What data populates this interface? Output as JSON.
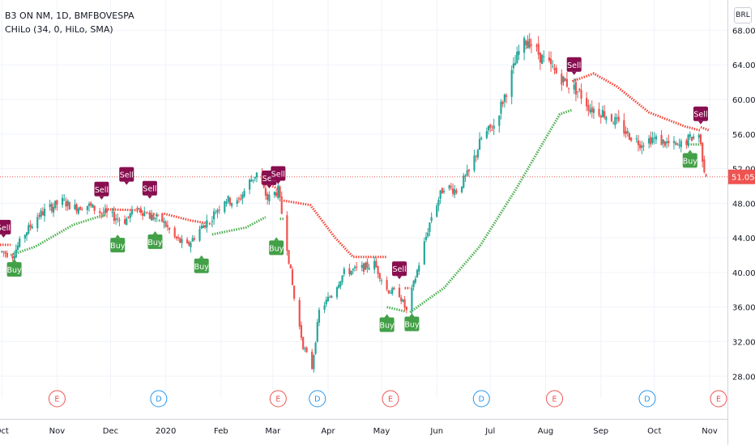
{
  "legend": {
    "symbol_line": "B3 ON NM, 1D, BMFBOVESPA",
    "indicator_line": "CHiLo (34, 0, HiLo, SMA)"
  },
  "currency_button": "BRL",
  "last_price_label": "51.05",
  "colors": {
    "up": "#26a69a",
    "down": "#ef5350",
    "hilo_buy": "#4caf50",
    "hilo_sell": "#f44336",
    "sell_badge": "#880e4f",
    "buy_badge": "#43a047",
    "earnings": "#ef5350",
    "dividend": "#2196f3",
    "grid": "#f0f3fa",
    "axis_text": "#131722",
    "last_price": "#ef5350"
  },
  "events": [
    {
      "letter": "E",
      "kind": "earnings",
      "date": "2019-11-01"
    },
    {
      "letter": "D",
      "kind": "dividend",
      "date": "2019-12-28"
    },
    {
      "letter": "E",
      "kind": "earnings",
      "date": "2020-03-04"
    },
    {
      "letter": "D",
      "kind": "dividend",
      "date": "2020-03-26"
    },
    {
      "letter": "E",
      "kind": "earnings",
      "date": "2020-05-06"
    },
    {
      "letter": "D",
      "kind": "dividend",
      "date": "2020-06-26"
    },
    {
      "letter": "E",
      "kind": "earnings",
      "date": "2020-08-06"
    },
    {
      "letter": "D",
      "kind": "dividend",
      "date": "2020-09-27"
    },
    {
      "letter": "E",
      "kind": "earnings",
      "date": "2020-11-06"
    }
  ],
  "chart_data": {
    "type": "candlestick",
    "title": "B3 ON NM, 1D, BMFBOVESPA",
    "indicator": "CHiLo (34, 0, HiLo, SMA)",
    "currency": "BRL",
    "last_price": 51.05,
    "x_tick_labels": [
      "Oct",
      "Nov",
      "Dec",
      "2020",
      "Feb",
      "Mar",
      "Apr",
      "May",
      "Jun",
      "Jul",
      "Aug",
      "Sep",
      "Oct",
      "Nov"
    ],
    "x_tick_dates": [
      "2019-10-01",
      "2019-11-01",
      "2019-12-01",
      "2020-01-01",
      "2020-02-01",
      "2020-03-01",
      "2020-04-01",
      "2020-05-01",
      "2020-06-01",
      "2020-07-01",
      "2020-08-01",
      "2020-09-01",
      "2020-10-01",
      "2020-11-01"
    ],
    "xlim": [
      "2019-09-30",
      "2020-11-11"
    ],
    "y_ticks": [
      28,
      32,
      36,
      40,
      44,
      48,
      52,
      56,
      60,
      64,
      68
    ],
    "y_tick_labels": [
      "28.00",
      "32.00",
      "36.00",
      "40.00",
      "44.00",
      "48.00",
      "52.00",
      "56.00",
      "60.00",
      "64.00",
      "68.00"
    ],
    "ylim": [
      25.5,
      71.5
    ],
    "grid": true,
    "price_path": [
      [
        "2019-10-01",
        42.4
      ],
      [
        "2019-10-07",
        42.0
      ],
      [
        "2019-10-14",
        44.5
      ],
      [
        "2019-10-21",
        46.5
      ],
      [
        "2019-10-28",
        47.5
      ],
      [
        "2019-11-04",
        48.2
      ],
      [
        "2019-11-11",
        47.5
      ],
      [
        "2019-11-18",
        47.8
      ],
      [
        "2019-11-25",
        47.0
      ],
      [
        "2019-12-02",
        46.5
      ],
      [
        "2019-12-09",
        46.0
      ],
      [
        "2019-12-16",
        47.5
      ],
      [
        "2019-12-23",
        46.5
      ],
      [
        "2019-12-30",
        46.0
      ],
      [
        "2020-01-06",
        44.0
      ],
      [
        "2020-01-13",
        43.0
      ],
      [
        "2020-01-20",
        45.0
      ],
      [
        "2020-01-27",
        46.5
      ],
      [
        "2020-02-03",
        48.5
      ],
      [
        "2020-02-10",
        48.0
      ],
      [
        "2020-02-17",
        50.5
      ],
      [
        "2020-02-21",
        51.5
      ],
      [
        "2020-02-27",
        48.5
      ],
      [
        "2020-03-04",
        49.5
      ],
      [
        "2020-03-09",
        43.0
      ],
      [
        "2020-03-13",
        37.0
      ],
      [
        "2020-03-18",
        31.5
      ],
      [
        "2020-03-23",
        29.0
      ],
      [
        "2020-03-27",
        35.5
      ],
      [
        "2020-04-03",
        37.5
      ],
      [
        "2020-04-10",
        40.0
      ],
      [
        "2020-04-20",
        40.5
      ],
      [
        "2020-04-27",
        41.0
      ],
      [
        "2020-05-04",
        38.0
      ],
      [
        "2020-05-11",
        37.5
      ],
      [
        "2020-05-15",
        35.5
      ],
      [
        "2020-05-22",
        41.0
      ],
      [
        "2020-05-29",
        46.5
      ],
      [
        "2020-06-05",
        50.0
      ],
      [
        "2020-06-12",
        49.5
      ],
      [
        "2020-06-19",
        51.5
      ],
      [
        "2020-06-26",
        55.5
      ],
      [
        "2020-07-03",
        57.0
      ],
      [
        "2020-07-10",
        61.0
      ],
      [
        "2020-07-17",
        65.5
      ],
      [
        "2020-07-22",
        67.0
      ],
      [
        "2020-07-29",
        65.0
      ],
      [
        "2020-08-05",
        63.5
      ],
      [
        "2020-08-12",
        62.0
      ],
      [
        "2020-08-19",
        61.0
      ],
      [
        "2020-08-26",
        59.0
      ],
      [
        "2020-09-02",
        58.5
      ],
      [
        "2020-09-09",
        57.5
      ],
      [
        "2020-09-16",
        56.0
      ],
      [
        "2020-09-23",
        55.0
      ],
      [
        "2020-09-30",
        55.5
      ],
      [
        "2020-10-07",
        55.0
      ],
      [
        "2020-10-14",
        54.5
      ],
      [
        "2020-10-21",
        55.5
      ],
      [
        "2020-10-26",
        56.0
      ],
      [
        "2020-10-29",
        52.0
      ],
      [
        "2020-10-31",
        51.05
      ]
    ],
    "hilo_segments": [
      {
        "side": "sell",
        "points": [
          [
            "2019-09-30",
            43.2
          ],
          [
            "2019-10-06",
            43.2
          ]
        ]
      },
      {
        "side": "buy",
        "points": [
          [
            "2019-10-06",
            42.0
          ],
          [
            "2019-10-20",
            43.0
          ],
          [
            "2019-11-10",
            45.5
          ],
          [
            "2019-11-25",
            46.5
          ],
          [
            "2019-11-28",
            46.6
          ]
        ]
      },
      {
        "side": "sell",
        "points": [
          [
            "2019-11-28",
            47.3
          ],
          [
            "2019-12-15",
            47.2
          ],
          [
            "2019-12-28",
            46.6
          ]
        ]
      },
      {
        "side": "buy",
        "points": [
          [
            "2019-12-28",
            46.0
          ],
          [
            "2019-12-31",
            46.0
          ]
        ]
      },
      {
        "side": "sell",
        "points": [
          [
            "2019-12-31",
            46.8
          ],
          [
            "2020-01-15",
            46.0
          ],
          [
            "2020-01-27",
            45.6
          ]
        ]
      },
      {
        "side": "buy",
        "points": [
          [
            "2020-01-27",
            44.4
          ],
          [
            "2020-02-15",
            45.2
          ],
          [
            "2020-02-26",
            46.4
          ]
        ]
      },
      {
        "side": "sell",
        "points": [
          [
            "2020-02-26",
            50.3
          ],
          [
            "2020-03-05",
            49.6
          ]
        ]
      },
      {
        "side": "buy",
        "points": [
          [
            "2020-03-05",
            46.2
          ],
          [
            "2020-03-07",
            46.2
          ]
        ]
      },
      {
        "side": "sell",
        "points": [
          [
            "2020-03-07",
            48.3
          ],
          [
            "2020-03-22",
            47.8
          ],
          [
            "2020-04-05",
            44.0
          ],
          [
            "2020-04-15",
            41.8
          ],
          [
            "2020-05-04",
            41.8
          ]
        ]
      },
      {
        "side": "buy",
        "points": [
          [
            "2020-05-04",
            36.0
          ],
          [
            "2020-05-14",
            35.5
          ]
        ]
      },
      {
        "side": "sell",
        "points": [
          [
            "2020-05-14",
            38.2
          ],
          [
            "2020-05-17",
            38.2
          ]
        ]
      },
      {
        "side": "buy",
        "points": [
          [
            "2020-05-17",
            35.4
          ],
          [
            "2020-06-05",
            38.2
          ],
          [
            "2020-06-25",
            43.0
          ],
          [
            "2020-07-15",
            49.5
          ],
          [
            "2020-08-01",
            55.5
          ],
          [
            "2020-08-09",
            58.3
          ],
          [
            "2020-08-16",
            58.8
          ]
        ]
      },
      {
        "side": "sell",
        "points": [
          [
            "2020-08-16",
            62.1
          ],
          [
            "2020-08-28",
            63.0
          ],
          [
            "2020-09-10",
            61.5
          ],
          [
            "2020-09-28",
            58.5
          ],
          [
            "2020-10-18",
            56.9
          ],
          [
            "2020-10-27",
            56.4
          ]
        ]
      },
      {
        "side": "buy",
        "points": [
          [
            "2020-10-20",
            54.8
          ],
          [
            "2020-10-27",
            54.8
          ]
        ]
      },
      {
        "side": "sell",
        "points": [
          [
            "2020-10-27",
            56.8
          ],
          [
            "2020-11-01",
            56.4
          ]
        ]
      }
    ],
    "signals": [
      {
        "label": "Sell",
        "date": "2019-10-02",
        "price": 44.4
      },
      {
        "label": "Buy",
        "date": "2019-10-08",
        "price": 41.2
      },
      {
        "label": "Sell",
        "date": "2019-11-26",
        "price": 48.8
      },
      {
        "label": "Sell",
        "date": "2019-12-10",
        "price": 50.5
      },
      {
        "label": "Buy",
        "date": "2019-12-05",
        "price": 44.0
      },
      {
        "label": "Sell",
        "date": "2019-12-23",
        "price": 48.9
      },
      {
        "label": "Buy",
        "date": "2019-12-26",
        "price": 44.4
      },
      {
        "label": "Buy",
        "date": "2020-01-21",
        "price": 41.6
      },
      {
        "label": "Sell",
        "date": "2020-02-28",
        "price": 50.1
      },
      {
        "label": "Sell",
        "date": "2020-03-04",
        "price": 50.6
      },
      {
        "label": "Buy",
        "date": "2020-03-03",
        "price": 43.7
      },
      {
        "label": "Buy",
        "date": "2020-05-04",
        "price": 34.8
      },
      {
        "label": "Sell",
        "date": "2020-05-11",
        "price": 39.6
      },
      {
        "label": "Buy",
        "date": "2020-05-18",
        "price": 34.9
      },
      {
        "label": "Sell",
        "date": "2020-08-17",
        "price": 63.2
      },
      {
        "label": "Buy",
        "date": "2020-10-21",
        "price": 53.8
      },
      {
        "label": "Sell",
        "date": "2020-10-27",
        "price": 57.5
      }
    ]
  }
}
